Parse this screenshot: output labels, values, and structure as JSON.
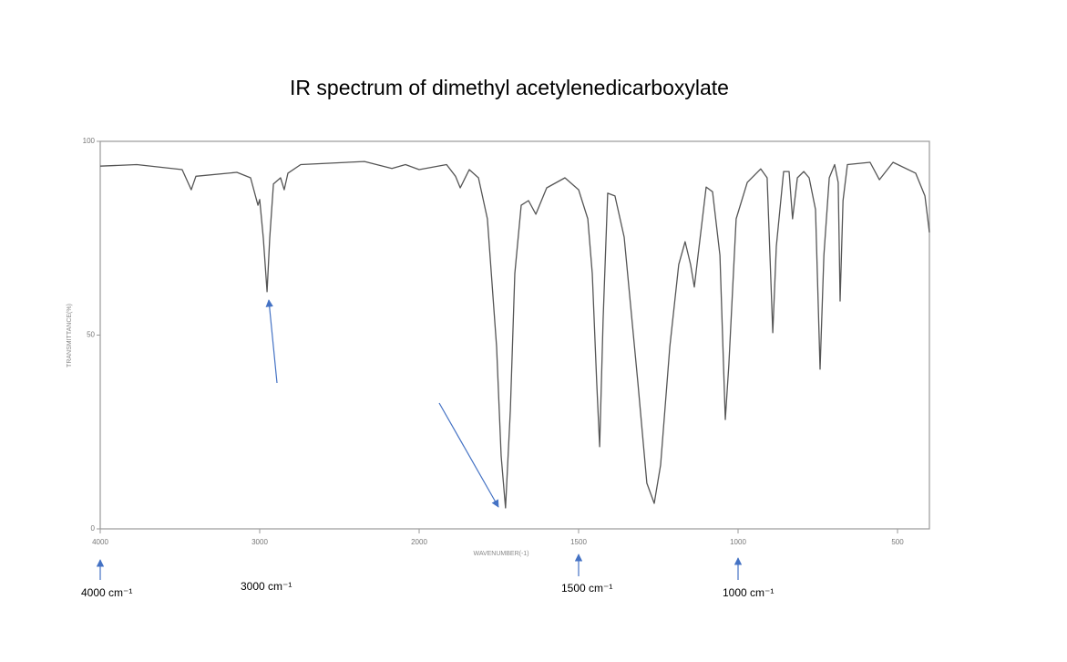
{
  "chart_data": {
    "type": "line",
    "title": "IR spectrum of dimethyl acetylenedicarboxylate",
    "x_label": "WAVENUMBER(-1)",
    "y_label": "TRANSMITTANCE(%)",
    "x": [
      4000,
      3771,
      3486,
      3429,
      3400,
      3143,
      3057,
      3011,
      3000,
      2977,
      2954,
      2937,
      2914,
      2869,
      2846,
      2823,
      2743,
      2343,
      2171,
      2086,
      2000,
      1914,
      1886,
      1871,
      1843,
      1814,
      1786,
      1757,
      1743,
      1729,
      1714,
      1700,
      1680,
      1657,
      1634,
      1600,
      1543,
      1500,
      1471,
      1457,
      1443,
      1434,
      1423,
      1409,
      1386,
      1357,
      1314,
      1286,
      1263,
      1243,
      1214,
      1186,
      1166,
      1149,
      1137,
      1129,
      1100,
      1080,
      1057,
      1040,
      1029,
      1006,
      971,
      929,
      909,
      891,
      880,
      857,
      840,
      829,
      814,
      794,
      777,
      757,
      743,
      731,
      714,
      697,
      686,
      680,
      671,
      657,
      586,
      557,
      514,
      443,
      414,
      400
    ],
    "series": [
      {
        "color": "#555555",
        "values": [
          93.6,
          94,
          92.7,
          87.5,
          91,
          92,
          90.6,
          83.5,
          85,
          75,
          61.2,
          75,
          89,
          90.6,
          87.5,
          91.8,
          94,
          94.8,
          93,
          94,
          92.7,
          94,
          91,
          88,
          92.7,
          90.6,
          80,
          47,
          18.8,
          5.4,
          30.6,
          65.9,
          83.5,
          84.7,
          81.2,
          88,
          90.6,
          87.5,
          80,
          65.9,
          37.6,
          21.2,
          54,
          86.6,
          85.9,
          75.3,
          37.6,
          11.8,
          6.6,
          16.5,
          47,
          68.2,
          74.1,
          68.2,
          62.4,
          68.2,
          88.2,
          87,
          70.6,
          28.2,
          42.4,
          80,
          89.4,
          92.9,
          90.6,
          50.6,
          72.9,
          92.2,
          92.2,
          80,
          90.6,
          92.2,
          90.6,
          82.4,
          41.2,
          70.6,
          90.6,
          94,
          89.4,
          58.8,
          84.7,
          94,
          94.6,
          90.1,
          94.6,
          91.8,
          85.9,
          76.5
        ]
      }
    ],
    "xlim": [
      4000,
      400
    ],
    "xticks": [
      4000,
      3000,
      2000,
      1500,
      1000,
      500
    ],
    "ylim": [
      0,
      100
    ],
    "yticks": [
      0,
      50,
      100
    ],
    "annotations": [
      "4000 cm⁻¹",
      "3000 cm⁻¹",
      "1500 cm⁻¹",
      "1000 cm⁻¹"
    ]
  }
}
